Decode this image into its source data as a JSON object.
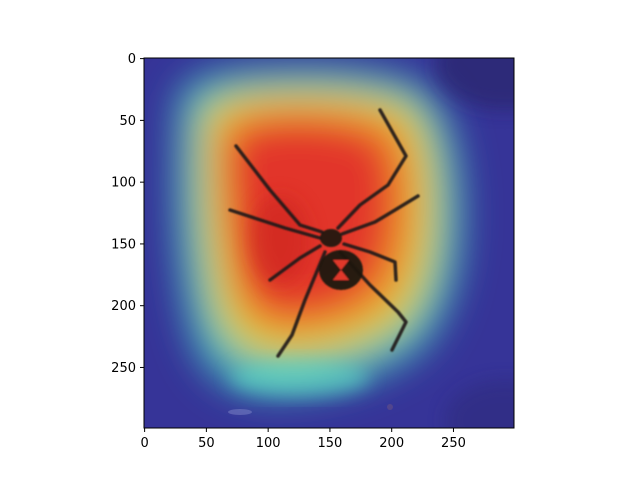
{
  "chart_data": {
    "type": "heatmap",
    "title": "",
    "xlabel": "",
    "ylabel": "",
    "xlim": [
      0,
      299
    ],
    "ylim": [
      299,
      0
    ],
    "x_ticks": [
      0,
      50,
      100,
      150,
      200,
      250
    ],
    "y_ticks": [
      0,
      50,
      100,
      150,
      200,
      250
    ],
    "x_tick_labels": [
      "0",
      "50",
      "100",
      "150",
      "200",
      "250"
    ],
    "y_tick_labels": [
      "0",
      "50",
      "100",
      "150",
      "200",
      "250"
    ],
    "colormap": "jet",
    "grid": false,
    "legend": "none",
    "overlay": "spider photo (black widow, red hourglass marking) beneath class-activation heatmap",
    "heat_peak_region": {
      "x": [
        60,
        195
      ],
      "y": [
        70,
        215
      ]
    },
    "colors": {
      "low": "#3e3bb0",
      "mid": "#45c7b6",
      "high_mid": "#e8d23a",
      "high": "#e0312a",
      "spider_body": "#1a1410",
      "hourglass": "#e0392b"
    }
  }
}
